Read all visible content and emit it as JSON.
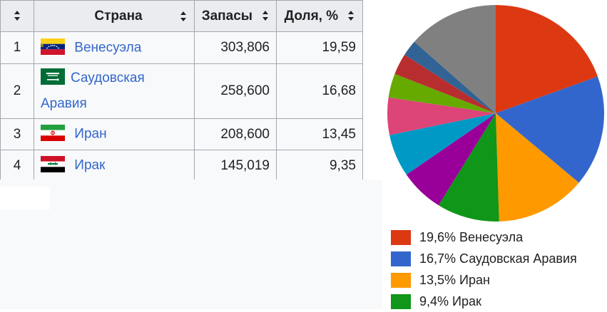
{
  "table": {
    "headers": {
      "num": "",
      "country": "Страна",
      "reserves": "Запасы",
      "share": "Доля, %"
    },
    "rows": [
      {
        "num": "1",
        "country": "Венесуэла",
        "country_line1": "",
        "country_line2": "",
        "reserves": "303,806",
        "share": "19,59",
        "flag_icon": "venezuela-flag-icon"
      },
      {
        "num": "2",
        "country": "",
        "country_line1": "Саудовская",
        "country_line2": "Аравия",
        "reserves": "258,600",
        "share": "16,68",
        "flag_icon": "saudi-arabia-flag-icon"
      },
      {
        "num": "3",
        "country": "Иран",
        "country_line1": "",
        "country_line2": "",
        "reserves": "208,600",
        "share": "13,45",
        "flag_icon": "iran-flag-icon"
      },
      {
        "num": "4",
        "country": "Ирак",
        "country_line1": "",
        "country_line2": "",
        "reserves": "145,019",
        "share": "9,35",
        "flag_icon": "iraq-flag-icon"
      }
    ]
  },
  "chart_data": {
    "type": "pie",
    "start_angle_deg": 0,
    "direction": "clockwise",
    "slices": [
      {
        "label": "Венесуэла",
        "value": 19.6,
        "color": "#dc3912"
      },
      {
        "label": "Саудовская Аравия",
        "value": 16.7,
        "color": "#3366cc"
      },
      {
        "label": "Иран",
        "value": 13.5,
        "color": "#ff9900"
      },
      {
        "label": "Ирак",
        "value": 9.4,
        "color": "#109618"
      },
      {
        "label": "",
        "value": 6.6,
        "color": "#990099"
      },
      {
        "label": "",
        "value": 6.4,
        "color": "#0099c6"
      },
      {
        "label": "",
        "value": 5.6,
        "color": "#dd4477"
      },
      {
        "label": "",
        "value": 3.6,
        "color": "#66aa00"
      },
      {
        "label": "",
        "value": 3.2,
        "color": "#b82e2e"
      },
      {
        "label": "",
        "value": 2.4,
        "color": "#316395"
      },
      {
        "label": "",
        "value": 13.6,
        "color": "#808080"
      }
    ],
    "legend": [
      {
        "text": "19,6% Венесуэла",
        "color": "#dc3912"
      },
      {
        "text": "16,7% Саудовская Аравия",
        "color": "#3366cc"
      },
      {
        "text": "13,5% Иран",
        "color": "#ff9900"
      },
      {
        "text": "9,4% Ирак",
        "color": "#109618"
      }
    ]
  },
  "colors": {
    "link": "#3366cc",
    "header_bg": "#eaecf0",
    "cell_bg": "#f8f9fa",
    "border": "#a2a9b1"
  }
}
